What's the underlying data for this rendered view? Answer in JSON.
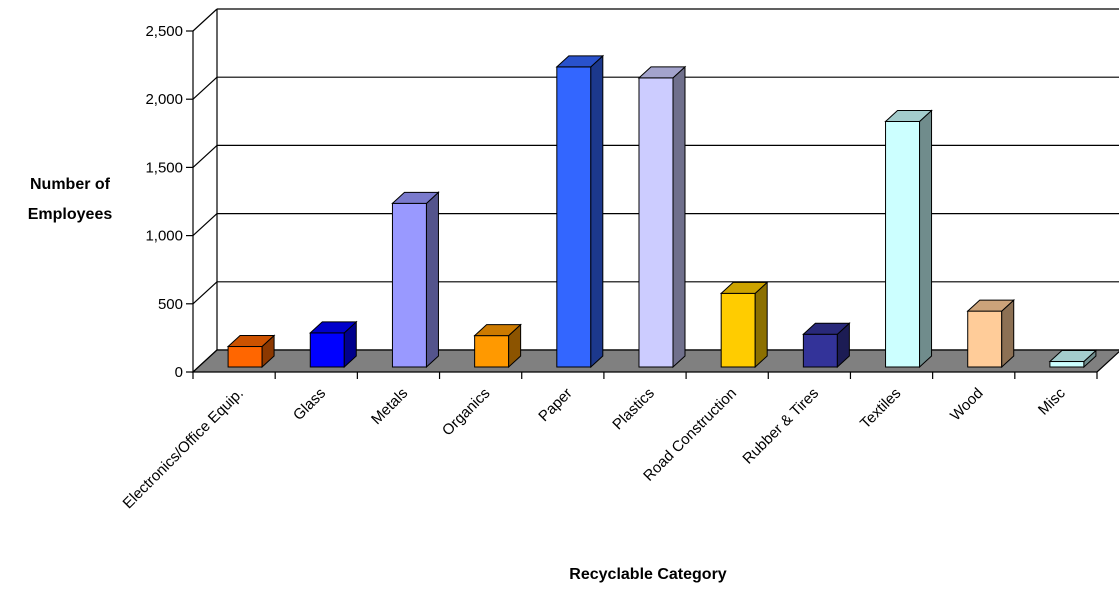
{
  "chart_data": {
    "type": "bar",
    "title": "",
    "xlabel": "Recyclable Category",
    "ylabel": [
      "Number of",
      "Employees"
    ],
    "ylim": [
      0,
      2500
    ],
    "yticks": [
      0,
      500,
      1000,
      1500,
      2000,
      2500
    ],
    "ytick_labels": [
      "0",
      "500",
      "1,000",
      "1,500",
      "2,000",
      "2,500"
    ],
    "grid": true,
    "legend": "none",
    "categories": [
      "Electronics/Office Equip.",
      "Glass",
      "Metals",
      "Organics",
      "Paper",
      "Plastics",
      "Road Construction",
      "Rubber & Tires",
      "Textiles",
      "Wood",
      "Misc"
    ],
    "values": [
      150,
      250,
      1200,
      230,
      2200,
      2120,
      540,
      240,
      1800,
      410,
      40
    ],
    "colors": [
      "#ff6600",
      "#0000ff",
      "#9999ff",
      "#ff9900",
      "#3366ff",
      "#ccccff",
      "#ffcc00",
      "#333399",
      "#ccffff",
      "#ffcc99",
      "#ccffff"
    ],
    "floor_color": "#808080"
  }
}
